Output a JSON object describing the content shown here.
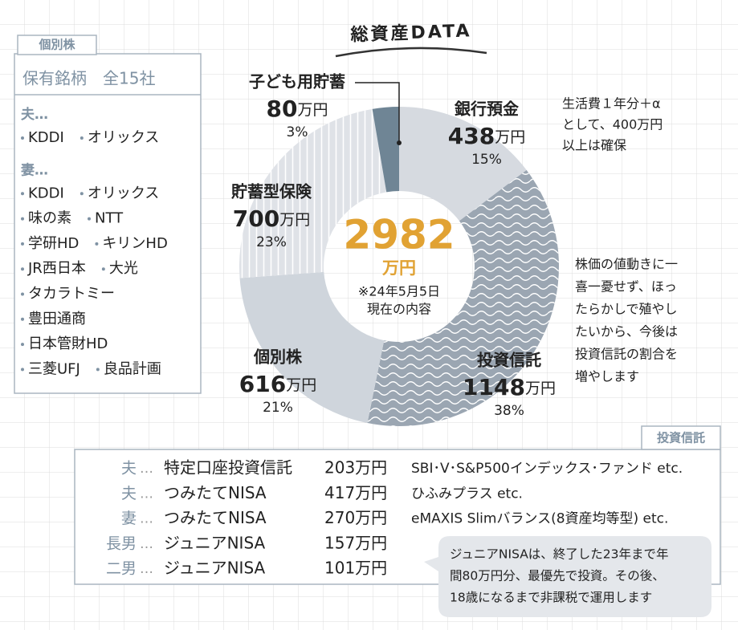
{
  "chart_data": {
    "type": "donut",
    "title": "総資産DATA",
    "categories": [
      "銀行預金",
      "投資信託",
      "個別株",
      "貯蓄型保険",
      "子ども用貯蓄"
    ],
    "values": [
      438,
      1148,
      616,
      700,
      80
    ],
    "unit": "万円",
    "percent_labels": [
      "15%",
      "38%",
      "21%",
      "23%",
      "3%"
    ],
    "colors": [
      "#d6dae0",
      "#9ba6b2",
      "#cfd5dc",
      "#dfe2e7",
      "#6f8595"
    ],
    "patterns": [
      "none",
      "wave",
      "none",
      "stripes",
      "none"
    ],
    "total": 2982,
    "note_lines": [
      "※24年5月5日",
      "現在の内容"
    ],
    "annotations": [
      [
        "生活費１年分＋α",
        "として、400万円",
        "以上は確保"
      ],
      [
        "株価の値動きに一",
        "喜一憂せず、ほっ",
        "たらかしで殖やし",
        "たいから、今後は",
        "投資信託の割合を",
        "増やします"
      ]
    ]
  },
  "stocks": {
    "tab": "個別株",
    "heading": "保有銘柄　全15社",
    "groups": [
      {
        "owner": "夫…",
        "rows": [
          [
            "KDDI",
            "オリックス"
          ]
        ]
      },
      {
        "owner": "妻…",
        "rows": [
          [
            "KDDI",
            "オリックス"
          ],
          [
            "味の素",
            "NTT"
          ],
          [
            "学研HD",
            "キリンHD"
          ],
          [
            "JR西日本",
            "大光"
          ],
          [
            "タカラトミー"
          ],
          [
            "豊田通商"
          ],
          [
            "日本管財HD"
          ],
          [
            "三菱UFJ",
            "良品計画"
          ]
        ]
      }
    ]
  },
  "trusts": {
    "tab": "投資信託",
    "sep": "…",
    "rows": [
      {
        "owner": "夫",
        "account": "特定口座投資信託",
        "amount": "203万円",
        "fund": "SBI･V･S&P500インデックス･ファンド etc."
      },
      {
        "owner": "夫",
        "account": "つみたてNISA",
        "amount": "417万円",
        "fund": "ひふみプラス etc."
      },
      {
        "owner": "妻",
        "account": "つみたてNISA",
        "amount": "270万円",
        "fund": "eMAXIS Slimバランス(8資産均等型) etc."
      },
      {
        "owner": "長男",
        "account": "ジュニアNISA",
        "amount": "157万円",
        "fund": null
      },
      {
        "owner": "二男",
        "account": "ジュニアNISA",
        "amount": "101万円",
        "fund": null
      }
    ],
    "bubble_lines": [
      "ジュニアNISAは、終了した23年まで年",
      "間80万円分、最優先で投資。その後、",
      "18歳になるまで非課税で運用します"
    ]
  }
}
